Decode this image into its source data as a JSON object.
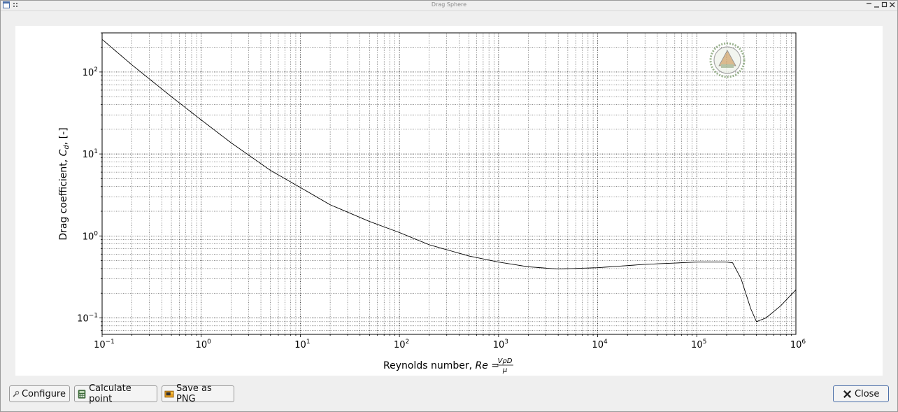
{
  "window": {
    "title": "Drag Sphere"
  },
  "buttons": {
    "configure": "Configure",
    "calculate": "Calculate point",
    "save": "Save as PNG",
    "close": "Close"
  },
  "chart_data": {
    "type": "line",
    "xlabel": "Reynolds number, Re = VρD/μ",
    "ylabel": "Drag coefficient, C_d, [-]",
    "x_scale": "log",
    "y_scale": "log",
    "xlim": [
      0.1,
      1000000
    ],
    "ylim": [
      0.063,
      300
    ],
    "grid": true,
    "x_ticks": [
      {
        "value": 0.1,
        "base": "10",
        "exp": "−1"
      },
      {
        "value": 1,
        "base": "10",
        "exp": "0"
      },
      {
        "value": 10,
        "base": "10",
        "exp": "1"
      },
      {
        "value": 100,
        "base": "10",
        "exp": "2"
      },
      {
        "value": 1000,
        "base": "10",
        "exp": "3"
      },
      {
        "value": 10000,
        "base": "10",
        "exp": "4"
      },
      {
        "value": 100000,
        "base": "10",
        "exp": "5"
      },
      {
        "value": 1000000,
        "base": "10",
        "exp": "6"
      }
    ],
    "y_ticks": [
      {
        "value": 0.1,
        "base": "10",
        "exp": "−1"
      },
      {
        "value": 1,
        "base": "10",
        "exp": "0"
      },
      {
        "value": 10,
        "base": "10",
        "exp": "1"
      },
      {
        "value": 100,
        "base": "10",
        "exp": "2"
      }
    ],
    "series": [
      {
        "x": [
          0.1,
          0.2,
          0.5,
          1,
          2,
          5,
          10,
          20,
          50,
          100,
          200,
          500,
          1000,
          2000,
          4000,
          10000,
          30000,
          100000,
          200000,
          230000,
          280000,
          350000,
          400000,
          500000,
          700000,
          1000000
        ],
        "y": [
          250,
          122,
          50,
          26,
          13.7,
          6.3,
          3.9,
          2.4,
          1.5,
          1.1,
          0.78,
          0.57,
          0.48,
          0.42,
          0.395,
          0.41,
          0.45,
          0.48,
          0.48,
          0.47,
          0.3,
          0.13,
          0.09,
          0.1,
          0.14,
          0.22
        ]
      }
    ]
  }
}
